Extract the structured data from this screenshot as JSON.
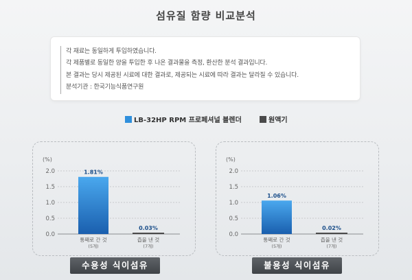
{
  "title": "섬유질 함량 비교분석",
  "notes": [
    "각 재료는 동일하게 투입하였습니다.",
    "각 제품별로 동일한 양을 투입한 후 나온 결과물을 측정, 환산한 분석 결과입니다.",
    "본 결과는 당시 제공된 시료에 대한 결과로, 제공되는 시료에 따라 결과는 달라질 수 있습니다.",
    "분석기관 : 한국기능식품연구원"
  ],
  "legend": [
    {
      "label": "LB-32HP RPM 프로페셔널 블렌더",
      "color": "#2f8fdc"
    },
    {
      "label": "원액기",
      "color": "#4a4a4a"
    }
  ],
  "colors": {
    "blender_top": "#4aa8ee",
    "blender_bottom": "#1a5fae",
    "juicer": "#4a4a4a",
    "value_text": "#1c4f8a",
    "axis_text": "#666666"
  },
  "chart_data": [
    {
      "type": "bar",
      "title": "수용성 식이섬유",
      "ylabel": "(%)",
      "ylim": [
        0,
        2.0
      ],
      "yticks": [
        "2.0",
        "1.5",
        "1.0",
        "0.5",
        "0.0"
      ],
      "categories": [
        {
          "label": "통째로 간 것",
          "sub": "(5개)"
        },
        {
          "label": "즙을 낸 것",
          "sub": "(7개)"
        }
      ],
      "values": [
        1.81,
        0.03
      ],
      "value_labels": [
        "1.81%",
        "0.03%"
      ]
    },
    {
      "type": "bar",
      "title": "불용성 식이섬유",
      "ylabel": "(%)",
      "ylim": [
        0,
        2.0
      ],
      "yticks": [
        "2.0",
        "1.5",
        "1.0",
        "0.5",
        "0.0"
      ],
      "categories": [
        {
          "label": "통째로 간 것",
          "sub": "(5개)"
        },
        {
          "label": "즙을 낸 것",
          "sub": "(7개)"
        }
      ],
      "values": [
        1.06,
        0.02
      ],
      "value_labels": [
        "1.06%",
        "0.02%"
      ]
    }
  ]
}
